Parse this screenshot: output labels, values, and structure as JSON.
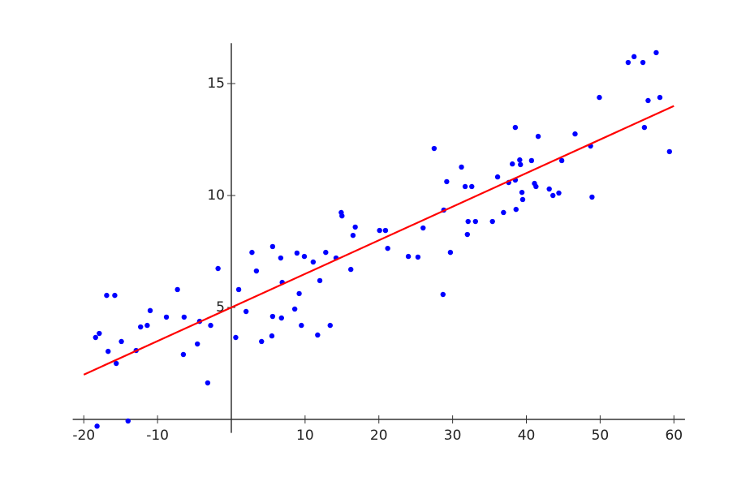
{
  "chart_data": {
    "type": "scatter",
    "x": [
      -18.4,
      -17.9,
      -16.9,
      -15.8,
      -16.7,
      -15.6,
      -14.9,
      -18.2,
      -14,
      -12.9,
      -12.3,
      -11.4,
      -11,
      -8.8,
      -7.3,
      -6.5,
      -6.4,
      -4.6,
      -4.3,
      -3.2,
      -2.8,
      -1.8,
      0.6,
      1,
      2,
      2.8,
      3.4,
      4.1,
      5.5,
      5.6,
      5.6,
      6.7,
      6.8,
      6.9,
      8.6,
      8.9,
      9.2,
      9.5,
      9.9,
      11.1,
      11.7,
      12,
      12.8,
      13.4,
      14.2,
      14.9,
      15,
      16.2,
      16.5,
      16.8,
      20.1,
      20.9,
      21.2,
      24,
      25.3,
      26,
      27.5,
      28.7,
      28.8,
      29.2,
      29.7,
      31.2,
      31.7,
      32,
      32.1,
      32.6,
      33.1,
      35.4,
      36.1,
      36.9,
      37.6,
      38.1,
      38.5,
      38.5,
      38.6,
      39.1,
      39.2,
      39.4,
      39.5,
      40.7,
      41.1,
      41.3,
      41.6,
      43.1,
      43.6,
      44.4,
      44.8,
      46.6,
      48.7,
      48.9,
      49.9,
      53.8,
      54.6,
      55.8,
      56,
      56.5,
      57.6,
      58.1,
      59.4
    ],
    "values": [
      3.66,
      3.84,
      5.54,
      5.54,
      3.04,
      2.5,
      3.48,
      -0.3,
      -0.07,
      3.08,
      4.13,
      4.2,
      4.86,
      4.57,
      5.8,
      2.9,
      4.57,
      3.37,
      4.38,
      1.63,
      4.2,
      6.74,
      3.66,
      5.8,
      4.82,
      7.46,
      6.63,
      3.48,
      3.73,
      7.72,
      4.6,
      7.21,
      4.53,
      6.12,
      4.93,
      7.43,
      5.62,
      4.2,
      7.28,
      7.03,
      3.77,
      6.2,
      7.46,
      4.2,
      7.21,
      9.24,
      9.09,
      6.7,
      8.22,
      8.59,
      8.44,
      8.44,
      7.64,
      7.28,
      7.25,
      8.55,
      12.1,
      5.58,
      9.35,
      10.62,
      7.46,
      11.27,
      10.4,
      8.26,
      8.84,
      10.4,
      8.84,
      8.84,
      10.83,
      9.24,
      10.58,
      11.41,
      13.04,
      10.69,
      9.38,
      11.59,
      11.38,
      10.14,
      9.82,
      11.56,
      10.54,
      10.4,
      12.64,
      10.29,
      10,
      10.11,
      11.56,
      12.75,
      12.21,
      9.93,
      14.38,
      15.94,
      16.2,
      15.94,
      13.04,
      14.24,
      16.38,
      14.38,
      11.96
    ],
    "color": "#0000ff",
    "fit_line": {
      "x": [
        -20,
        60
      ],
      "values": [
        2,
        14
      ],
      "color": "#ff0000"
    },
    "xlim": [
      -21.5,
      61.5
    ],
    "ylim": [
      -0.6,
      16.8
    ],
    "xticks": [
      -20,
      -10,
      10,
      20,
      30,
      40,
      50,
      60
    ],
    "yticks": [
      5,
      10,
      15
    ]
  }
}
